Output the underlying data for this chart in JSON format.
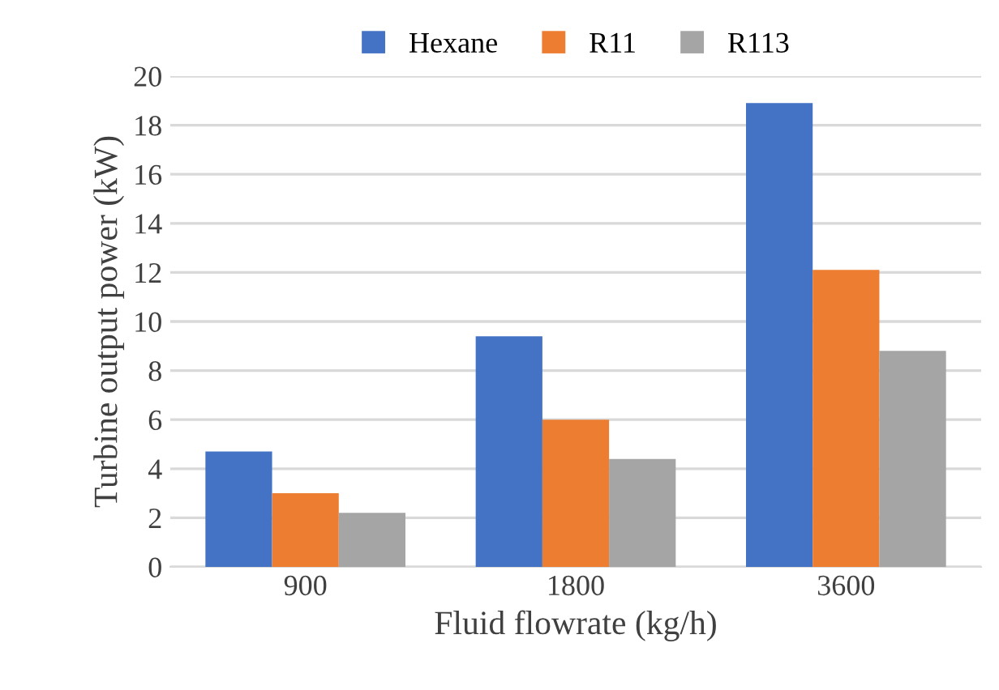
{
  "chart_data": {
    "type": "bar",
    "xlabel": "Fluid flowrate (kg/h)",
    "ylabel": "Turbine output power (kW)",
    "categories": [
      "900",
      "1800",
      "3600"
    ],
    "series": [
      {
        "name": "Hexane",
        "color": "#4472c4",
        "values": [
          4.7,
          9.4,
          18.9
        ]
      },
      {
        "name": "R11",
        "color": "#ed7d31",
        "values": [
          3.0,
          6.0,
          12.1
        ]
      },
      {
        "name": "R113",
        "color": "#a5a5a5",
        "values": [
          2.2,
          4.4,
          8.8
        ]
      }
    ],
    "ylim": [
      0,
      20
    ],
    "yticks": [
      0,
      2,
      4,
      6,
      8,
      10,
      12,
      14,
      16,
      18,
      20
    ],
    "grid": "y",
    "legend": "top"
  }
}
